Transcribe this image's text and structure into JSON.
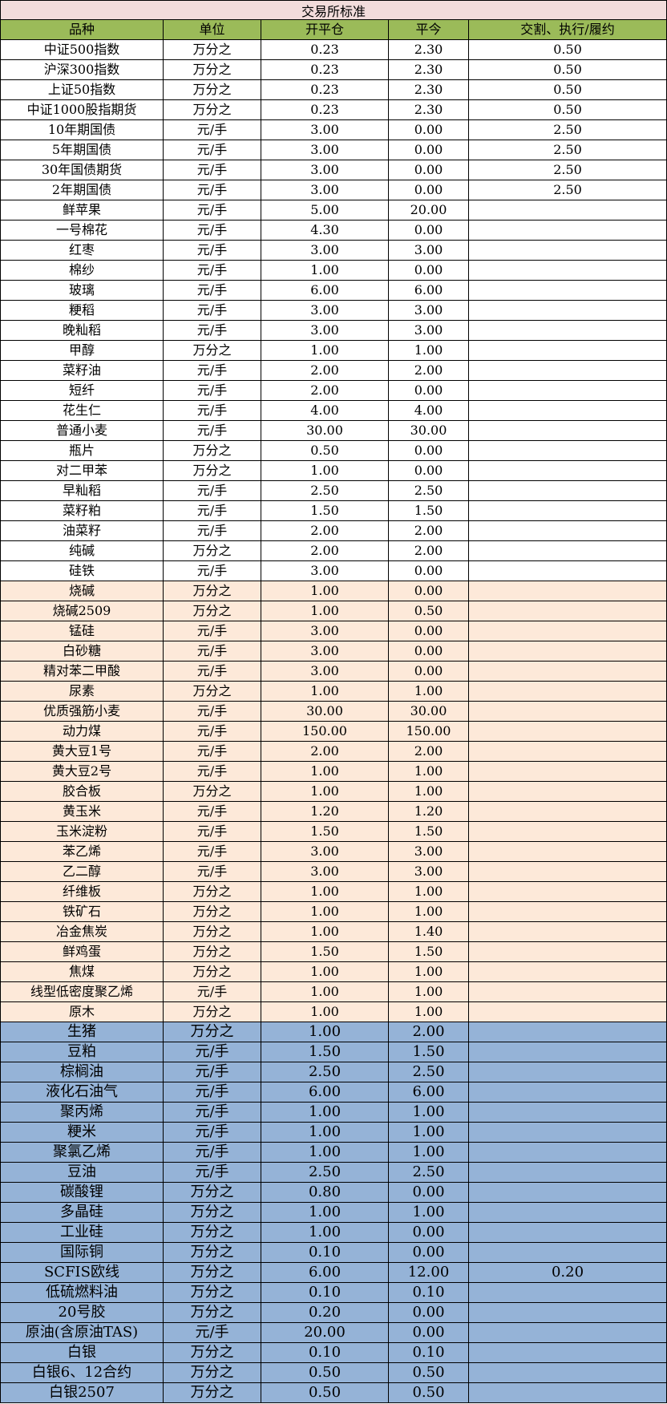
{
  "title": "交易所标准",
  "headers": [
    "品种",
    "单位",
    "开平仓",
    "平今",
    "交割、执行/履约"
  ],
  "section_colors": {
    "white": "#ffffff",
    "orange": "#fde9d9",
    "blue": "#95b3d7",
    "title": "#f2dcdb",
    "header": "#9bbb59"
  },
  "rows": [
    [
      "中证500指数",
      "万分之",
      "0.23",
      "2.30",
      "0.50",
      "white"
    ],
    [
      "沪深300指数",
      "万分之",
      "0.23",
      "2.30",
      "0.50",
      "white"
    ],
    [
      "上证50指数",
      "万分之",
      "0.23",
      "2.30",
      "0.50",
      "white"
    ],
    [
      "中证1000股指期货",
      "万分之",
      "0.23",
      "2.30",
      "0.50",
      "white"
    ],
    [
      "10年期国债",
      "元/手",
      "3.00",
      "0.00",
      "2.50",
      "white"
    ],
    [
      "5年期国债",
      "元/手",
      "3.00",
      "0.00",
      "2.50",
      "white"
    ],
    [
      "30年国债期货",
      "元/手",
      "3.00",
      "0.00",
      "2.50",
      "white"
    ],
    [
      "2年期国债",
      "元/手",
      "3.00",
      "0.00",
      "2.50",
      "white"
    ],
    [
      "鲜苹果",
      "元/手",
      "5.00",
      "20.00",
      "",
      "white"
    ],
    [
      "一号棉花",
      "元/手",
      "4.30",
      "0.00",
      "",
      "white"
    ],
    [
      "红枣",
      "元/手",
      "3.00",
      "3.00",
      "",
      "white"
    ],
    [
      "棉纱",
      "元/手",
      "1.00",
      "0.00",
      "",
      "white"
    ],
    [
      "玻璃",
      "元/手",
      "6.00",
      "6.00",
      "",
      "white"
    ],
    [
      "粳稻",
      "元/手",
      "3.00",
      "3.00",
      "",
      "white"
    ],
    [
      "晚籼稻",
      "元/手",
      "3.00",
      "3.00",
      "",
      "white"
    ],
    [
      "甲醇",
      "万分之",
      "1.00",
      "1.00",
      "",
      "white"
    ],
    [
      "菜籽油",
      "元/手",
      "2.00",
      "2.00",
      "",
      "white"
    ],
    [
      "短纤",
      "元/手",
      "2.00",
      "0.00",
      "",
      "white"
    ],
    [
      "花生仁",
      "元/手",
      "4.00",
      "4.00",
      "",
      "white"
    ],
    [
      "普通小麦",
      "元/手",
      "30.00",
      "30.00",
      "",
      "white"
    ],
    [
      "瓶片",
      "万分之",
      "0.50",
      "0.00",
      "",
      "white"
    ],
    [
      "对二甲苯",
      "万分之",
      "1.00",
      "0.00",
      "",
      "white"
    ],
    [
      "早籼稻",
      "元/手",
      "2.50",
      "2.50",
      "",
      "white"
    ],
    [
      "菜籽粕",
      "元/手",
      "1.50",
      "1.50",
      "",
      "white"
    ],
    [
      "油菜籽",
      "元/手",
      "2.00",
      "2.00",
      "",
      "white"
    ],
    [
      "纯碱",
      "万分之",
      "2.00",
      "2.00",
      "",
      "white"
    ],
    [
      "硅铁",
      "元/手",
      "3.00",
      "0.00",
      "",
      "white"
    ],
    [
      "烧碱",
      "万分之",
      "1.00",
      "0.00",
      "",
      "orange"
    ],
    [
      "烧碱2509",
      "万分之",
      "1.00",
      "0.50",
      "",
      "orange"
    ],
    [
      "锰硅",
      "元/手",
      "3.00",
      "0.00",
      "",
      "orange"
    ],
    [
      "白砂糖",
      "元/手",
      "3.00",
      "0.00",
      "",
      "orange"
    ],
    [
      "精对苯二甲酸",
      "元/手",
      "3.00",
      "0.00",
      "",
      "orange"
    ],
    [
      "尿素",
      "万分之",
      "1.00",
      "1.00",
      "",
      "orange"
    ],
    [
      "优质强筋小麦",
      "元/手",
      "30.00",
      "30.00",
      "",
      "orange"
    ],
    [
      "动力煤",
      "元/手",
      "150.00",
      "150.00",
      "",
      "orange"
    ],
    [
      "黄大豆1号",
      "元/手",
      "2.00",
      "2.00",
      "",
      "orange"
    ],
    [
      "黄大豆2号",
      "元/手",
      "1.00",
      "1.00",
      "",
      "orange"
    ],
    [
      "胶合板",
      "万分之",
      "1.00",
      "1.00",
      "",
      "orange"
    ],
    [
      "黄玉米",
      "元/手",
      "1.20",
      "1.20",
      "",
      "orange"
    ],
    [
      "玉米淀粉",
      "元/手",
      "1.50",
      "1.50",
      "",
      "orange"
    ],
    [
      "苯乙烯",
      "元/手",
      "3.00",
      "3.00",
      "",
      "orange"
    ],
    [
      "乙二醇",
      "元/手",
      "3.00",
      "3.00",
      "",
      "orange"
    ],
    [
      "纤维板",
      "万分之",
      "1.00",
      "1.00",
      "",
      "orange"
    ],
    [
      "铁矿石",
      "万分之",
      "1.00",
      "1.00",
      "",
      "orange"
    ],
    [
      "冶金焦炭",
      "万分之",
      "1.00",
      "1.40",
      "",
      "orange"
    ],
    [
      "鲜鸡蛋",
      "万分之",
      "1.50",
      "1.50",
      "",
      "orange"
    ],
    [
      "焦煤",
      "万分之",
      "1.00",
      "1.00",
      "",
      "orange"
    ],
    [
      "线型低密度聚乙烯",
      "元/手",
      "1.00",
      "1.00",
      "",
      "orange"
    ],
    [
      "原木",
      "万分之",
      "1.00",
      "1.00",
      "",
      "orange"
    ],
    [
      "生猪",
      "万分之",
      "1.00",
      "2.00",
      "",
      "blue"
    ],
    [
      "豆粕",
      "元/手",
      "1.50",
      "1.50",
      "",
      "blue"
    ],
    [
      "棕榈油",
      "元/手",
      "2.50",
      "2.50",
      "",
      "blue"
    ],
    [
      "液化石油气",
      "元/手",
      "6.00",
      "6.00",
      "",
      "blue"
    ],
    [
      "聚丙烯",
      "元/手",
      "1.00",
      "1.00",
      "",
      "blue"
    ],
    [
      "粳米",
      "元/手",
      "1.00",
      "1.00",
      "",
      "blue"
    ],
    [
      "聚氯乙烯",
      "元/手",
      "1.00",
      "1.00",
      "",
      "blue"
    ],
    [
      "豆油",
      "元/手",
      "2.50",
      "2.50",
      "",
      "blue"
    ],
    [
      "碳酸锂",
      "万分之",
      "0.80",
      "0.00",
      "",
      "blue"
    ],
    [
      "多晶硅",
      "万分之",
      "1.00",
      "1.00",
      "",
      "blue"
    ],
    [
      "工业硅",
      "万分之",
      "1.00",
      "0.00",
      "",
      "blue"
    ],
    [
      "国际铜",
      "万分之",
      "0.10",
      "0.00",
      "",
      "blue"
    ],
    [
      "SCFIS欧线",
      "万分之",
      "6.00",
      "12.00",
      "0.20",
      "blue"
    ],
    [
      "低硫燃料油",
      "万分之",
      "0.10",
      "0.10",
      "",
      "blue"
    ],
    [
      "20号胶",
      "万分之",
      "0.20",
      "0.00",
      "",
      "blue"
    ],
    [
      "原油(含原油TAS)",
      "元/手",
      "20.00",
      "0.00",
      "",
      "blue"
    ],
    [
      "白银",
      "万分之",
      "0.10",
      "0.10",
      "",
      "blue"
    ],
    [
      "白银6、12合约",
      "万分之",
      "0.50",
      "0.50",
      "",
      "blue"
    ],
    [
      "白银2507",
      "万分之",
      "0.50",
      "0.50",
      "",
      "blue"
    ]
  ]
}
